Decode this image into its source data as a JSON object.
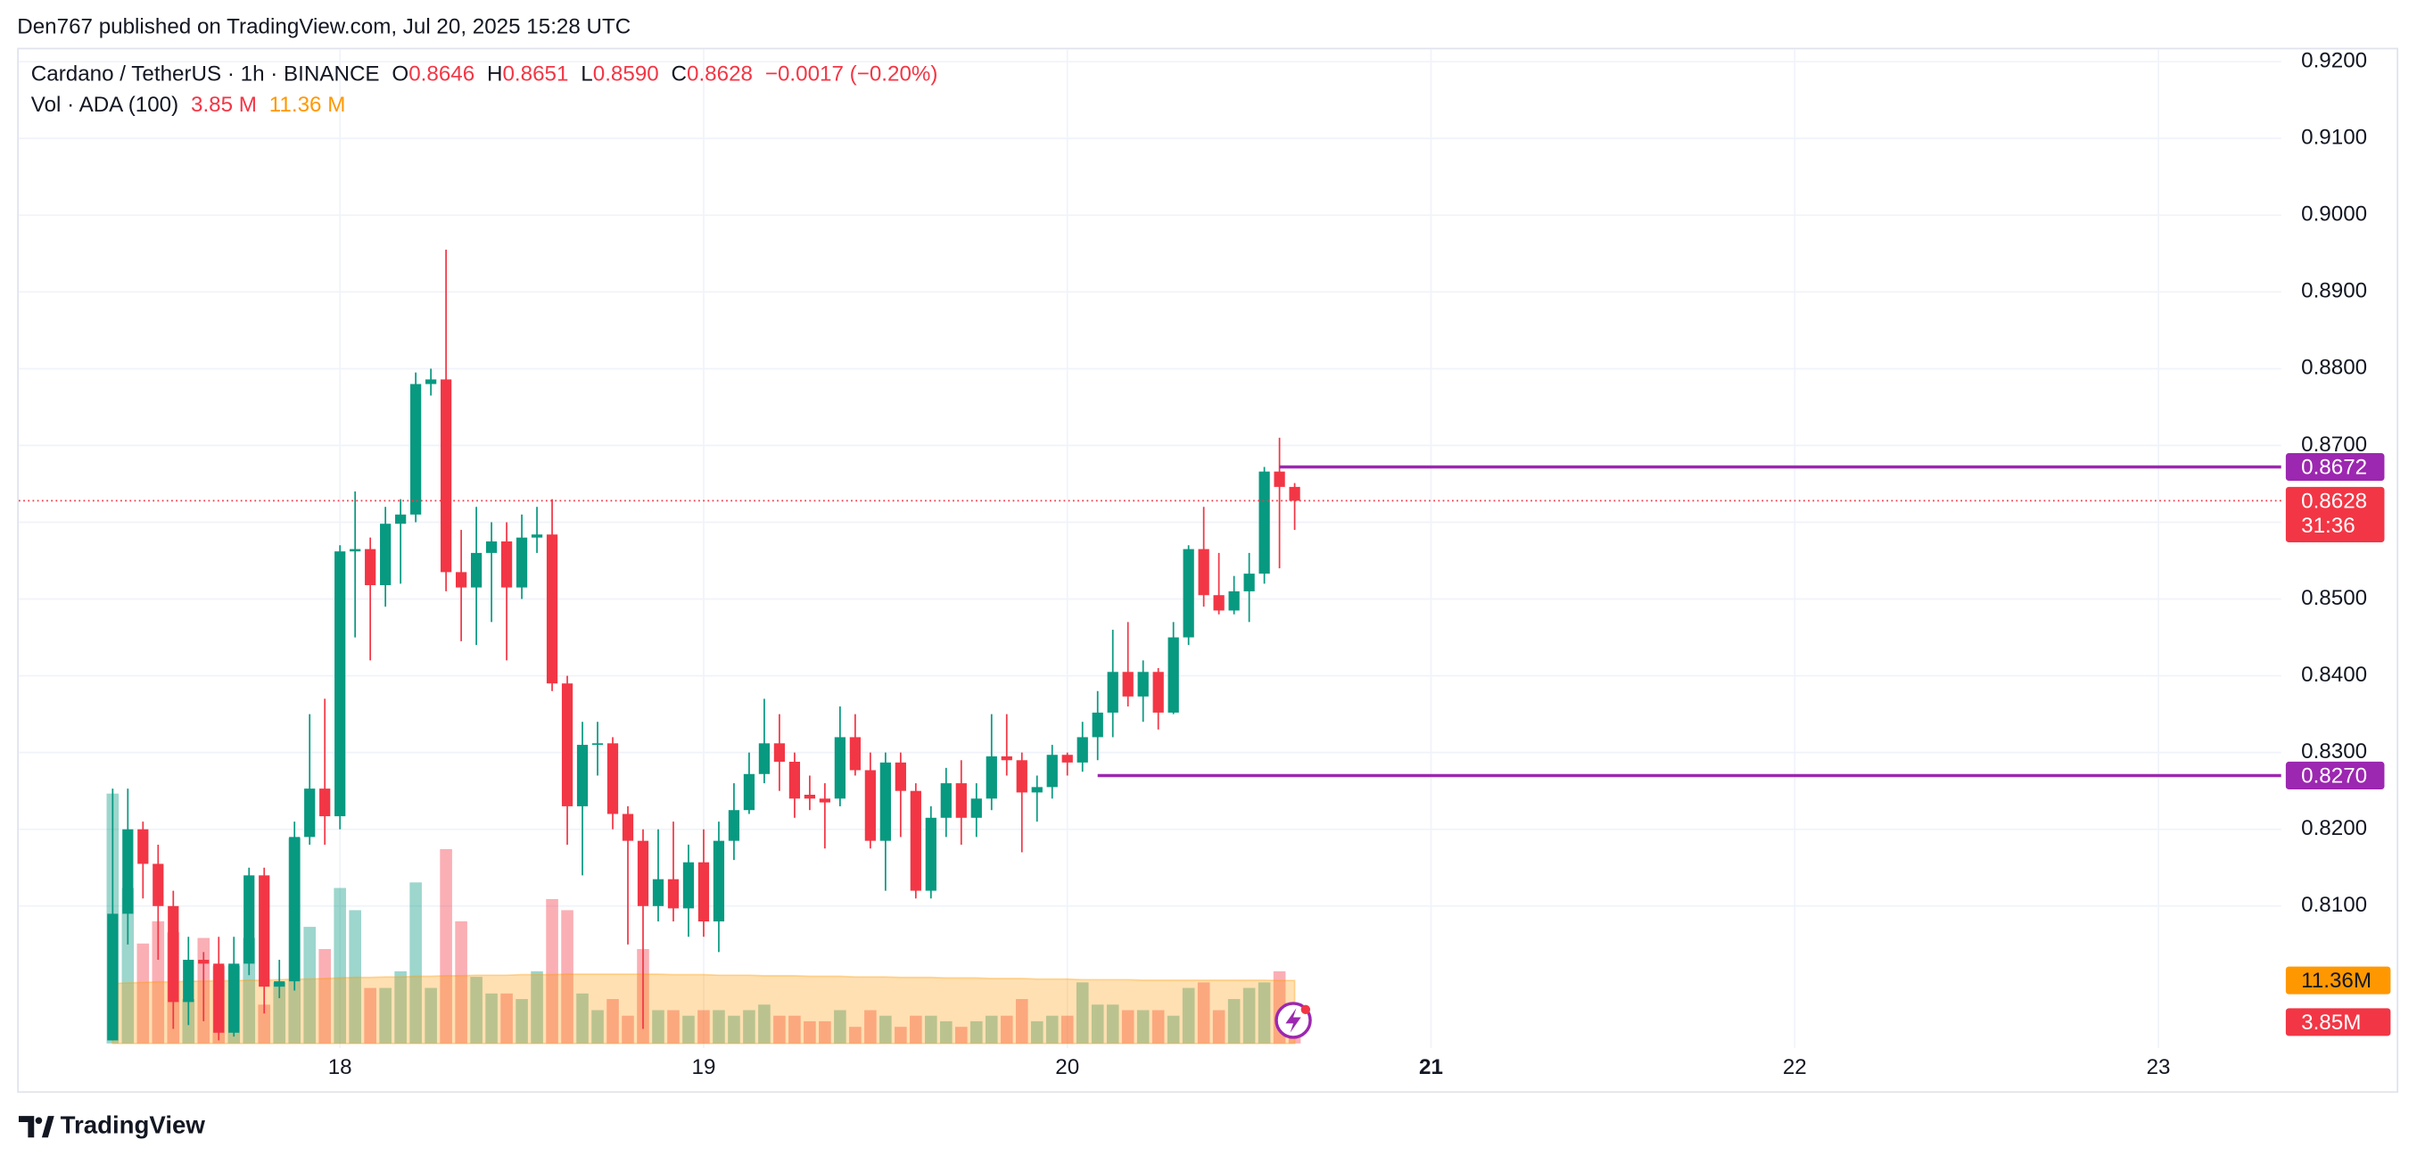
{
  "header": {
    "text": "Den767 published on TradingView.com, Jul 20, 2025 15:28 UTC"
  },
  "chart_data": {
    "type": "candlestick",
    "symbol": "Cardano / TetherUS · 1h · BINANCE",
    "ohlc": [
      {
        "label": "O",
        "value": "0.8646"
      },
      {
        "label": "H",
        "value": "0.8651"
      },
      {
        "label": "L",
        "value": "0.8590"
      },
      {
        "label": "C",
        "value": "0.8628"
      }
    ],
    "change": "−0.0017 (−0.20%)",
    "volume_title": "Vol · ADA (100)",
    "volume_value": "3.85 M",
    "volume_ma_value": "11.36 M",
    "up_color": "#089981",
    "down_color": "#f23645",
    "ma_color": "#ff9800",
    "open": [
      0.7925,
      0.809,
      0.82,
      0.8155,
      0.81,
      0.7975,
      0.803,
      0.8025,
      0.7935,
      0.8025,
      0.814,
      0.7995,
      0.8002,
      0.819,
      0.8253,
      0.8217,
      0.8562,
      0.8565,
      0.8518,
      0.8598,
      0.861,
      0.878,
      0.8786,
      0.8535,
      0.8515,
      0.856,
      0.8575,
      0.8515,
      0.858,
      0.8584,
      0.839,
      0.823,
      0.831,
      0.8312,
      0.822,
      0.8185,
      0.81,
      0.8135,
      0.8097,
      0.8157,
      0.808,
      0.8185,
      0.8225,
      0.8272,
      0.8312,
      0.8288,
      0.8245,
      0.824,
      0.824,
      0.832,
      0.8277,
      0.8185,
      0.8287,
      0.825,
      0.812,
      0.8215,
      0.826,
      0.8215,
      0.824,
      0.8295,
      0.829,
      0.8248,
      0.8255,
      0.8297,
      0.8287,
      0.832,
      0.8352,
      0.8405,
      0.8373,
      0.8405,
      0.8352,
      0.845,
      0.8565,
      0.8505,
      0.8485,
      0.851,
      0.8533,
      0.8666,
      0.8646
    ],
    "high": [
      0.8253,
      0.8253,
      0.821,
      0.818,
      0.812,
      0.806,
      0.804,
      0.806,
      0.806,
      0.815,
      0.815,
      0.803,
      0.821,
      0.835,
      0.837,
      0.857,
      0.864,
      0.858,
      0.862,
      0.863,
      0.8795,
      0.88,
      0.8955,
      0.859,
      0.862,
      0.86,
      0.86,
      0.861,
      0.862,
      0.863,
      0.84,
      0.834,
      0.834,
      0.832,
      0.823,
      0.82,
      0.82,
      0.821,
      0.818,
      0.82,
      0.821,
      0.826,
      0.83,
      0.837,
      0.835,
      0.83,
      0.827,
      0.826,
      0.836,
      0.835,
      0.83,
      0.83,
      0.83,
      0.826,
      0.823,
      0.828,
      0.829,
      0.826,
      0.835,
      0.835,
      0.83,
      0.827,
      0.831,
      0.83,
      0.834,
      0.838,
      0.846,
      0.847,
      0.842,
      0.841,
      0.847,
      0.857,
      0.862,
      0.856,
      0.853,
      0.856,
      0.8672,
      0.871,
      0.8651
    ],
    "low": [
      0.7925,
      0.805,
      0.811,
      0.803,
      0.794,
      0.7945,
      0.795,
      0.7925,
      0.793,
      0.801,
      0.796,
      0.798,
      0.799,
      0.818,
      0.818,
      0.82,
      0.845,
      0.842,
      0.849,
      0.852,
      0.86,
      0.8765,
      0.851,
      0.8445,
      0.844,
      0.847,
      0.842,
      0.85,
      0.856,
      0.838,
      0.818,
      0.814,
      0.827,
      0.82,
      0.805,
      0.794,
      0.808,
      0.808,
      0.806,
      0.806,
      0.804,
      0.816,
      0.822,
      0.826,
      0.825,
      0.8215,
      0.8225,
      0.8175,
      0.823,
      0.827,
      0.8175,
      0.812,
      0.819,
      0.811,
      0.811,
      0.819,
      0.818,
      0.819,
      0.8225,
      0.827,
      0.817,
      0.821,
      0.824,
      0.827,
      0.8275,
      0.829,
      0.832,
      0.836,
      0.834,
      0.833,
      0.835,
      0.844,
      0.849,
      0.848,
      0.848,
      0.847,
      0.852,
      0.854,
      0.859
    ],
    "close": [
      0.809,
      0.82,
      0.8155,
      0.81,
      0.7975,
      0.803,
      0.8025,
      0.7935,
      0.8025,
      0.814,
      0.7995,
      0.8002,
      0.819,
      0.8253,
      0.8217,
      0.8562,
      0.8565,
      0.8518,
      0.8598,
      0.861,
      0.878,
      0.8786,
      0.8535,
      0.8515,
      0.856,
      0.8575,
      0.8515,
      0.858,
      0.8584,
      0.839,
      0.823,
      0.831,
      0.8312,
      0.822,
      0.8185,
      0.81,
      0.8135,
      0.8097,
      0.8157,
      0.808,
      0.8185,
      0.8225,
      0.8272,
      0.8312,
      0.8288,
      0.824,
      0.824,
      0.8235,
      0.832,
      0.8277,
      0.8185,
      0.8287,
      0.825,
      0.812,
      0.8215,
      0.826,
      0.8215,
      0.824,
      0.8295,
      0.829,
      0.8248,
      0.8255,
      0.8297,
      0.8287,
      0.832,
      0.8352,
      0.8405,
      0.8373,
      0.8405,
      0.8352,
      0.845,
      0.8565,
      0.8505,
      0.8485,
      0.851,
      0.8533,
      0.8666,
      0.8646,
      0.8628
    ],
    "volume": [
      45,
      28,
      18,
      22,
      20,
      8,
      19,
      14,
      14,
      19,
      7,
      11,
      37,
      21,
      17,
      28,
      24,
      10,
      10,
      13,
      29,
      10,
      35,
      22,
      12,
      9,
      9,
      8,
      13,
      26,
      24,
      9,
      6,
      8,
      5,
      17,
      6,
      6,
      5,
      6,
      6,
      5,
      6,
      7,
      5,
      5,
      4,
      4,
      6,
      3,
      6,
      5,
      3,
      5,
      5,
      4,
      3,
      4,
      5,
      5,
      8,
      4,
      5,
      5,
      11,
      7,
      7,
      6,
      6,
      6,
      5,
      10,
      11,
      6,
      8,
      10,
      11,
      13,
      3.85
    ],
    "volume_ma": [
      10.8,
      10.9,
      11.0,
      11.1,
      11.1,
      11.2,
      11.2,
      11.3,
      11.3,
      11.4,
      11.4,
      11.5,
      11.6,
      11.6,
      11.7,
      11.8,
      11.9,
      11.9,
      12.0,
      12.0,
      12.1,
      12.1,
      12.2,
      12.2,
      12.3,
      12.3,
      12.3,
      12.4,
      12.4,
      12.4,
      12.5,
      12.5,
      12.5,
      12.5,
      12.5,
      12.5,
      12.5,
      12.4,
      12.4,
      12.4,
      12.3,
      12.3,
      12.3,
      12.2,
      12.2,
      12.2,
      12.1,
      12.1,
      12.1,
      12.0,
      12.0,
      12.0,
      11.9,
      11.9,
      11.9,
      11.8,
      11.8,
      11.8,
      11.7,
      11.7,
      11.7,
      11.6,
      11.6,
      11.6,
      11.5,
      11.5,
      11.5,
      11.5,
      11.4,
      11.4,
      11.4,
      11.4,
      11.4,
      11.4,
      11.4,
      11.4,
      11.4,
      11.36,
      11.36
    ],
    "xlim": [
      -6.2,
      143.1
    ],
    "xticks": [
      {
        "value": 15,
        "label": "18"
      },
      {
        "value": 39,
        "label": "19"
      },
      {
        "value": 63,
        "label": "20"
      },
      {
        "value": 87,
        "label": "21"
      },
      {
        "value": 111,
        "label": "22"
      },
      {
        "value": 135,
        "label": "23"
      }
    ],
    "ylim": [
      0.7921,
      0.9216
    ],
    "yticks": [
      {
        "value": 0.81,
        "label": "0.8100"
      },
      {
        "value": 0.82,
        "label": "0.8200"
      },
      {
        "value": 0.83,
        "label": "0.8300"
      },
      {
        "value": 0.84,
        "label": "0.8400"
      },
      {
        "value": 0.85,
        "label": "0.8500"
      },
      {
        "value": 0.86,
        "label": "0.8600"
      },
      {
        "value": 0.87,
        "label": "0.8700"
      },
      {
        "value": 0.88,
        "label": "0.8800"
      },
      {
        "value": 0.89,
        "label": "0.8900"
      },
      {
        "value": 0.9,
        "label": "0.9000"
      },
      {
        "value": 0.91,
        "label": "0.9100"
      },
      {
        "value": 0.92,
        "label": "0.9200"
      }
    ],
    "vlim": [
      0,
      179
    ],
    "grid": true,
    "levels": [
      {
        "value": 0.8672,
        "label": "0.8672",
        "from": 77,
        "color": "#9c27b0"
      },
      {
        "value": 0.827,
        "label": "0.8270",
        "from": 65,
        "color": "#9c27b0"
      }
    ],
    "last": {
      "value": 0.8628,
      "label": "0.8628",
      "countdown": "31:36",
      "color": "#f23645"
    },
    "volume_labels": [
      {
        "value": 11.36,
        "label": "11.36M",
        "color": "#ff9800"
      },
      {
        "value": 3.85,
        "label": "3.85M",
        "color": "#f23645"
      }
    ]
  },
  "footer": {
    "brand": "TradingView"
  }
}
